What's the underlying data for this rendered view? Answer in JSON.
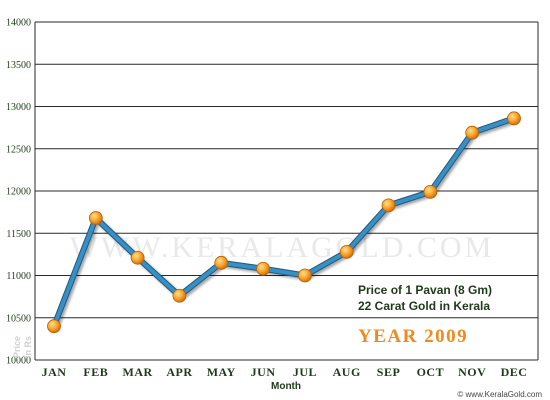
{
  "chart_data": {
    "type": "line",
    "categories": [
      "JAN",
      "FEB",
      "MAR",
      "APR",
      "MAY",
      "JUN",
      "JUL",
      "AUG",
      "SEP",
      "OCT",
      "NOV",
      "DEC"
    ],
    "series": [
      {
        "values": [
          10400,
          11680,
          11210,
          10760,
          11150,
          11080,
          11000,
          11280,
          11830,
          11990,
          12690,
          12860
        ]
      }
    ],
    "xlabel": "Month",
    "ylabel": [
      "Price",
      "in Rs"
    ],
    "ylim": [
      10000,
      14000
    ],
    "yticks": [
      10000,
      10500,
      11000,
      11500,
      12000,
      12500,
      13000,
      13500,
      14000
    ],
    "grid": true,
    "annotations": [
      "Price of 1 Pavan (8 Gm)",
      "22 Carat Gold in Kerala"
    ],
    "year_label": "YEAR 2009",
    "watermark": "WWW.KERALAGOLD.COM",
    "footer": "© www.KeralaGold.com",
    "colors": {
      "line": "#3a8fc2",
      "marker": "#f59a1e",
      "year": "#f08a1c",
      "text": "#1f3a1a"
    }
  }
}
